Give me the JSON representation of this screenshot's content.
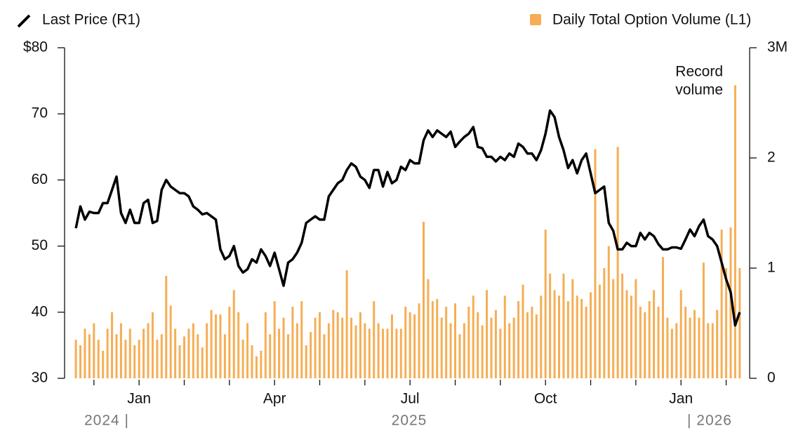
{
  "chart_data": {
    "type": "combo",
    "legend": "top",
    "x": [
      10.6,
      10.7,
      10.8,
      10.9,
      11,
      11.1,
      11.2,
      11.3,
      11.4,
      11.5,
      11.6,
      11.7,
      11.8,
      11.9,
      12,
      12.1,
      12.2,
      12.3,
      12.4,
      12.5,
      12.6,
      12.7,
      12.8,
      12.9,
      13,
      13.1,
      13.2,
      13.3,
      13.4,
      13.5,
      13.6,
      13.7,
      13.8,
      13.9,
      14,
      14.1,
      14.2,
      14.3,
      14.4,
      14.5,
      14.6,
      14.7,
      14.8,
      14.9,
      15,
      15.1,
      15.2,
      15.3,
      15.4,
      15.5,
      15.6,
      15.7,
      15.8,
      15.9,
      16,
      16.1,
      16.2,
      16.3,
      16.4,
      16.5,
      16.6,
      16.7,
      16.8,
      16.9,
      17,
      17.1,
      17.2,
      17.3,
      17.4,
      17.5,
      17.6,
      17.7,
      17.8,
      17.9,
      18,
      18.1,
      18.2,
      18.3,
      18.4,
      18.5,
      18.6,
      18.7,
      18.8,
      18.9,
      19,
      19.1,
      19.2,
      19.3,
      19.4,
      19.5,
      19.6,
      19.7,
      19.8,
      19.9,
      20,
      20.1,
      20.2,
      20.3,
      20.4,
      20.5,
      20.6,
      20.7,
      20.8,
      20.9,
      21,
      21.1,
      21.2,
      21.3,
      21.4,
      21.5,
      21.6,
      21.7,
      21.8,
      21.9,
      22,
      22.1,
      22.2,
      22.3,
      22.4,
      22.5,
      22.6,
      22.7,
      22.8,
      22.9,
      23,
      23.1,
      23.2,
      23.3,
      23.4,
      23.5,
      23.6,
      23.7,
      23.8,
      23.9,
      24,
      24.1,
      24.2,
      24.3,
      24.4,
      24.5,
      24.6,
      24.7,
      24.8,
      24.9,
      25,
      25.1,
      25.2,
      25.3
    ],
    "xlim": [
      10.35,
      25.52
    ],
    "xticks": [
      {
        "value": 12,
        "label": "Jan"
      },
      {
        "value": 15,
        "label": "Apr"
      },
      {
        "value": 18,
        "label": "Jul"
      },
      {
        "value": 21,
        "label": "Oct"
      },
      {
        "value": 24,
        "label": "Jan"
      }
    ],
    "xminorticks": [
      11,
      13,
      14,
      16,
      17,
      19,
      20,
      22,
      23,
      25
    ],
    "year_labels": [
      "2024 |",
      "2025",
      "| 2026"
    ],
    "ylim": [
      30,
      80
    ],
    "yticks": [
      30,
      40,
      50,
      60,
      70,
      {
        "value": 80,
        "label": "$80"
      }
    ],
    "y2lim": [
      0,
      3
    ],
    "y2ticks": [
      0,
      1,
      2,
      {
        "value": 3,
        "label": "3M"
      }
    ],
    "annotation": [
      "Record",
      "volume"
    ],
    "series": [
      {
        "name": "Last Price (R1)",
        "type": "line",
        "color": "#000000",
        "values": [
          52.7,
          56,
          54,
          55.2,
          55,
          55,
          56.5,
          56.5,
          58.5,
          60.5,
          55,
          53.5,
          55.5,
          53.5,
          53.5,
          56.5,
          57,
          53.5,
          53.8,
          58.5,
          60,
          59,
          58.5,
          58,
          58,
          57.5,
          56,
          55.5,
          54.8,
          55,
          54.5,
          54,
          49.5,
          48,
          48.5,
          50,
          47,
          46,
          46.5,
          48,
          47.5,
          49.5,
          48.5,
          47,
          49,
          46.5,
          44,
          47.5,
          48,
          49,
          50.5,
          53.5,
          54,
          54.5,
          54,
          54,
          57.5,
          58.5,
          59.5,
          60,
          61.5,
          62.5,
          62,
          60.5,
          60,
          58.8,
          61.5,
          61.5,
          59,
          61.2,
          59.5,
          60,
          62,
          61.5,
          63,
          62.5,
          62.5,
          66,
          67.5,
          66.5,
          67.5,
          67,
          66.5,
          67.3,
          65,
          65.8,
          66.5,
          67,
          68,
          65,
          64.8,
          63.5,
          63.5,
          62.8,
          63.5,
          63,
          64,
          63.5,
          65.5,
          65,
          64,
          64,
          63,
          64.5,
          67,
          70.5,
          69.5,
          66.5,
          64.5,
          61.8,
          63,
          61,
          63,
          64,
          61,
          58,
          58.5,
          59,
          53.5,
          52.3,
          49.5,
          49.5,
          50.5,
          50,
          50,
          52,
          51,
          52,
          51.5,
          50.3,
          49.5,
          49.5,
          49.8,
          49.8,
          49.6,
          51,
          52.5,
          51.5,
          53,
          54,
          51.5,
          51,
          50,
          47.5,
          45,
          43,
          38,
          40
        ]
      },
      {
        "name": "Daily Total Option Volume (L1)",
        "type": "bar",
        "axis": "y2",
        "color": "#f5ae55",
        "values": [
          0.35,
          0.3,
          0.45,
          0.4,
          0.5,
          0.35,
          0.25,
          0.45,
          0.6,
          0.4,
          0.5,
          0.35,
          0.45,
          0.3,
          0.35,
          0.45,
          0.5,
          0.6,
          0.35,
          0.4,
          0.93,
          0.66,
          0.45,
          0.3,
          0.38,
          0.45,
          0.5,
          0.4,
          0.28,
          0.5,
          0.62,
          0.58,
          0.58,
          0.4,
          0.65,
          0.8,
          0.6,
          0.35,
          0.5,
          0.3,
          0.2,
          0.25,
          0.6,
          0.4,
          0.7,
          0.45,
          0.55,
          0.4,
          0.65,
          0.5,
          0.7,
          0.3,
          0.42,
          0.55,
          0.6,
          0.4,
          0.5,
          0.62,
          0.6,
          0.55,
          0.98,
          0.55,
          0.48,
          0.6,
          0.5,
          0.45,
          0.7,
          0.5,
          0.45,
          0.45,
          0.58,
          0.45,
          0.45,
          0.65,
          0.6,
          0.58,
          0.68,
          1.42,
          0.9,
          0.7,
          0.72,
          0.55,
          0.65,
          0.5,
          0.68,
          0.4,
          0.5,
          0.65,
          0.75,
          0.6,
          0.48,
          0.8,
          0.55,
          0.62,
          0.45,
          0.75,
          0.5,
          0.55,
          0.7,
          0.85,
          0.6,
          0.65,
          0.58,
          0.75,
          1.35,
          0.95,
          0.8,
          0.75,
          0.95,
          0.7,
          0.9,
          0.75,
          0.72,
          0.65,
          0.78,
          2.08,
          0.85,
          1.0,
          1.2,
          0.9,
          2.1,
          0.95,
          0.8,
          0.75,
          0.9,
          0.65,
          0.6,
          0.7,
          0.8,
          0.65,
          1.1,
          0.55,
          0.45,
          0.5,
          0.8,
          0.65,
          0.55,
          0.62,
          0.55,
          1.05,
          0.5,
          0.5,
          0.62,
          1.35,
          1.0,
          1.37,
          2.66,
          1.0
        ]
      }
    ]
  }
}
